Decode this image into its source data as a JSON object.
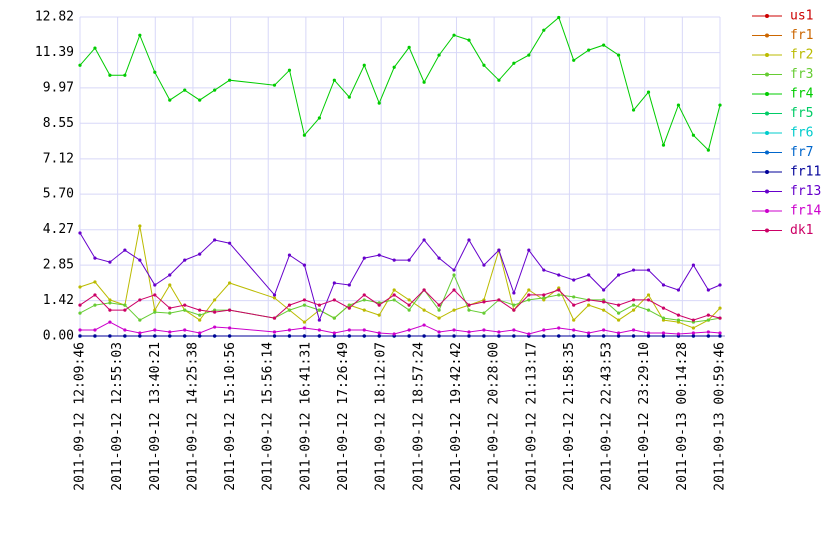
{
  "chart_data": {
    "type": "line",
    "x": [
      "2011-09-12 12:09:46",
      "2011-09-12 12:27:46",
      "2011-09-12 12:45:46",
      "2011-09-12 13:03:46",
      "2011-09-12 13:21:46",
      "2011-09-12 13:39:46",
      "2011-09-12 13:57:46",
      "2011-09-12 14:15:46",
      "2011-09-12 14:33:46",
      "2011-09-12 14:51:46",
      "2011-09-12 15:09:46",
      "2011-09-12 16:03:46",
      "2011-09-12 16:21:46",
      "2011-09-12 16:39:46",
      "2011-09-12 16:57:46",
      "2011-09-12 17:15:46",
      "2011-09-12 17:33:46",
      "2011-09-12 17:51:46",
      "2011-09-12 18:09:46",
      "2011-09-12 18:27:46",
      "2011-09-12 18:45:46",
      "2011-09-12 19:03:46",
      "2011-09-12 19:21:46",
      "2011-09-12 19:39:46",
      "2011-09-12 19:57:46",
      "2011-09-12 20:15:46",
      "2011-09-12 20:33:46",
      "2011-09-12 20:51:46",
      "2011-09-12 21:09:46",
      "2011-09-12 21:27:46",
      "2011-09-12 21:45:46",
      "2011-09-12 22:03:46",
      "2011-09-12 22:21:46",
      "2011-09-12 22:39:46",
      "2011-09-12 22:57:46",
      "2011-09-12 23:15:46",
      "2011-09-12 23:33:46",
      "2011-09-12 23:51:46",
      "2011-09-13 00:09:46",
      "2011-09-13 00:27:46",
      "2011-09-13 00:45:46",
      "2011-09-13 00:59:46"
    ],
    "xlim": [
      "2011-09-12 12:09:46",
      "2011-09-13 00:59:46"
    ],
    "xticks": [
      "2011-09-12 12:09:46",
      "2011-09-12 12:55:03",
      "2011-09-12 13:40:21",
      "2011-09-12 14:25:38",
      "2011-09-12 15:10:56",
      "2011-09-12 15:56:14",
      "2011-09-12 16:41:31",
      "2011-09-12 17:26:49",
      "2011-09-12 18:12:07",
      "2011-09-12 18:57:24",
      "2011-09-12 19:42:42",
      "2011-09-12 20:28:00",
      "2011-09-12 21:13:17",
      "2011-09-12 21:58:35",
      "2011-09-12 22:43:53",
      "2011-09-12 23:29:10",
      "2011-09-13 00:14:28",
      "2011-09-13 00:59:46"
    ],
    "ylim": [
      0,
      12.82
    ],
    "yticks": [
      {
        "value": 0,
        "label": "0.00"
      },
      1.42,
      2.85,
      4.27,
      {
        "value": 5.7,
        "label": "5.70"
      },
      7.12,
      8.55,
      9.97,
      11.39,
      12.82
    ],
    "grid": true,
    "legend": "right",
    "series": [
      {
        "name": "us1",
        "color": "#cc0000",
        "values": [
          0,
          0,
          0,
          0,
          0,
          0,
          0,
          0,
          0,
          0,
          0,
          0,
          0,
          0,
          0,
          0,
          0,
          0,
          0,
          0,
          0,
          0,
          0,
          0,
          0,
          0,
          0,
          0,
          0,
          0,
          0,
          0,
          0,
          0,
          0,
          0,
          0,
          0,
          0,
          0,
          0,
          0
        ]
      },
      {
        "name": "fr1",
        "color": "#cc6600",
        "values": [
          0,
          0,
          0,
          0,
          0,
          0,
          0,
          0,
          0,
          0,
          0,
          0,
          0,
          0,
          0,
          0,
          0,
          0,
          0,
          0,
          0,
          0,
          0,
          0,
          0,
          0,
          0,
          0,
          0,
          0,
          0,
          0,
          0,
          0,
          0,
          0,
          0,
          0,
          0,
          0,
          0,
          0
        ]
      },
      {
        "name": "fr2",
        "color": "#bbbb00",
        "values": [
          1.97,
          2.17,
          1.45,
          1.24,
          4.42,
          1.04,
          2.05,
          1.04,
          0.64,
          1.45,
          2.13,
          1.53,
          1.04,
          0.56,
          1.04,
          0.72,
          1.24,
          1.04,
          0.84,
          1.85,
          1.45,
          1.04,
          0.72,
          1.04,
          1.24,
          1.45,
          3.45,
          1.04,
          1.85,
          1.45,
          1.93,
          0.64,
          1.24,
          1.04,
          0.64,
          1.04,
          1.65,
          0.64,
          0.56,
          0.32,
          0.64,
          1.12
        ]
      },
      {
        "name": "fr3",
        "color": "#66cc33",
        "values": [
          0.92,
          1.24,
          1.33,
          1.24,
          0.64,
          0.96,
          0.92,
          1.04,
          0.84,
          1.04,
          1.04,
          0.72,
          1.04,
          1.24,
          1.04,
          0.72,
          1.24,
          1.45,
          1.33,
          1.45,
          1.04,
          1.85,
          1.04,
          2.45,
          1.04,
          0.92,
          1.45,
          1.24,
          1.45,
          1.53,
          1.65,
          1.57,
          1.45,
          1.45,
          0.92,
          1.24,
          1.04,
          0.72,
          0.64,
          0.56,
          0.64,
          0.72
        ]
      },
      {
        "name": "fr4",
        "color": "#00cc00",
        "values": [
          10.88,
          11.57,
          10.48,
          10.48,
          12.09,
          10.6,
          9.48,
          9.88,
          9.48,
          9.88,
          10.28,
          10.08,
          10.68,
          8.07,
          8.76,
          10.28,
          9.6,
          10.88,
          9.36,
          10.8,
          11.6,
          10.2,
          11.29,
          12.09,
          11.89,
          10.88,
          10.28,
          10.96,
          11.29,
          12.29,
          12.8,
          11.08,
          11.49,
          11.69,
          11.29,
          9.08,
          9.8,
          7.67,
          9.28,
          8.07,
          7.47,
          9.28
        ]
      },
      {
        "name": "fr5",
        "color": "#00cc66",
        "values": [
          0,
          0,
          0,
          0,
          0,
          0,
          0,
          0,
          0,
          0,
          0,
          0,
          0,
          0,
          0,
          0,
          0,
          0,
          0,
          0,
          0,
          0,
          0,
          0,
          0,
          0,
          0,
          0,
          0,
          0,
          0,
          0,
          0,
          0,
          0,
          0,
          0,
          0,
          0,
          0,
          0,
          0
        ]
      },
      {
        "name": "fr6",
        "color": "#00cccc",
        "values": [
          0,
          0,
          0,
          0,
          0,
          0,
          0,
          0,
          0,
          0,
          0,
          0,
          0,
          0,
          0,
          0,
          0,
          0,
          0,
          0,
          0,
          0,
          0,
          0,
          0,
          0,
          0,
          0,
          0,
          0,
          0,
          0,
          0,
          0,
          0,
          0,
          0,
          0,
          0,
          0,
          0,
          0
        ]
      },
      {
        "name": "fr7",
        "color": "#0066cc",
        "values": [
          0,
          0,
          0,
          0,
          0,
          0,
          0,
          0,
          0,
          0,
          0,
          0,
          0,
          0,
          0,
          0,
          0,
          0,
          0,
          0,
          0,
          0,
          0,
          0,
          0,
          0,
          0,
          0,
          0,
          0,
          0,
          0,
          0,
          0,
          0,
          0,
          0,
          0,
          0,
          0,
          0,
          0
        ]
      },
      {
        "name": "fr11",
        "color": "#000099",
        "values": [
          0,
          0,
          0,
          0,
          0,
          0,
          0,
          0,
          0,
          0,
          0,
          0,
          0,
          0,
          0,
          0,
          0,
          0,
          0,
          0,
          0,
          0,
          0,
          0,
          0,
          0,
          0,
          0,
          0,
          0,
          0,
          0,
          0,
          0,
          0,
          0,
          0,
          0,
          0,
          0,
          0,
          0
        ]
      },
      {
        "name": "fr13",
        "color": "#6600cc",
        "values": [
          4.14,
          3.13,
          2.97,
          3.45,
          3.05,
          2.05,
          2.45,
          3.05,
          3.29,
          3.86,
          3.73,
          1.65,
          3.25,
          2.85,
          0.64,
          2.13,
          2.05,
          3.13,
          3.25,
          3.05,
          3.05,
          3.86,
          3.13,
          2.65,
          3.86,
          2.85,
          3.45,
          1.73,
          3.45,
          2.65,
          2.45,
          2.25,
          2.45,
          1.85,
          2.45,
          2.65,
          2.65,
          2.05,
          1.85,
          2.85,
          1.85,
          2.05
        ]
      },
      {
        "name": "fr14",
        "color": "#cc00cc",
        "values": [
          0.24,
          0.24,
          0.56,
          0.24,
          0.12,
          0.24,
          0.16,
          0.24,
          0.12,
          0.36,
          0.32,
          0.16,
          0.24,
          0.32,
          0.24,
          0.12,
          0.24,
          0.24,
          0.12,
          0.08,
          0.24,
          0.44,
          0.16,
          0.24,
          0.16,
          0.24,
          0.16,
          0.24,
          0.08,
          0.24,
          0.32,
          0.24,
          0.12,
          0.24,
          0.12,
          0.24,
          0.12,
          0.12,
          0.08,
          0.12,
          0.16,
          0.12
        ]
      },
      {
        "name": "dk1",
        "color": "#cc0066",
        "values": [
          1.24,
          1.65,
          1.04,
          1.04,
          1.45,
          1.65,
          1.12,
          1.24,
          1.04,
          0.96,
          1.04,
          0.72,
          1.24,
          1.45,
          1.24,
          1.45,
          1.12,
          1.65,
          1.24,
          1.65,
          1.24,
          1.85,
          1.24,
          1.85,
          1.24,
          1.37,
          1.45,
          1.04,
          1.65,
          1.65,
          1.85,
          1.24,
          1.45,
          1.37,
          1.24,
          1.45,
          1.45,
          1.12,
          0.84,
          0.64,
          0.84,
          0.72
        ]
      }
    ]
  }
}
